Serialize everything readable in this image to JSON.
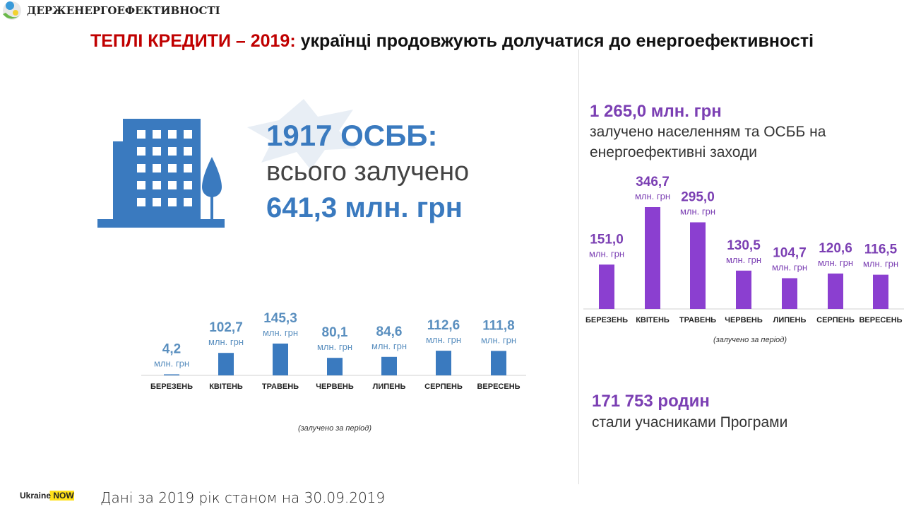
{
  "header": {
    "org": "ДЕРЖЕНЕРГОЕФЕКТИВНОСТІ",
    "title_red": "ТЕПЛІ КРЕДИТИ – 2019:",
    "title_black": "українці продовжують долучатися до енергоефективності"
  },
  "osbb": {
    "count": "1917 ОСББ:",
    "line2": "всього залучено",
    "amount": "641,3 млн. грн"
  },
  "right": {
    "total": "1 265,0 млн. грн",
    "total_desc1": "залучено населенням та ОСББ на",
    "total_desc2": "енергоефективні заходи",
    "families": "171 753 родин",
    "families_desc": "стали учасниками Програми"
  },
  "footer": {
    "logo": "Ukraine NOW",
    "date_note": "Дані за 2019 рік станом на 30.09.2019"
  },
  "colors": {
    "blue": "#3a7abf",
    "purple": "#8b3fd0",
    "red": "#c00000"
  },
  "chart_data": [
    {
      "type": "bar",
      "title": "ОСББ",
      "categories": [
        "БЕРЕЗЕНЬ",
        "КВІТЕНЬ",
        "ТРАВЕНЬ",
        "ЧЕРВЕНЬ",
        "ЛИПЕНЬ",
        "СЕРПЕНЬ",
        "ВЕРЕСЕНЬ"
      ],
      "values": [
        4.2,
        102.7,
        145.3,
        80.1,
        84.6,
        112.6,
        111.8
      ],
      "labels": [
        "4,2",
        "102,7",
        "145,3",
        "80,1",
        "84,6",
        "112,6",
        "111,8"
      ],
      "unit": "млн. грн",
      "xlabel": "(залучено за період)"
    },
    {
      "type": "bar",
      "title": "Населення та ОСББ",
      "categories": [
        "БЕРЕЗЕНЬ",
        "КВІТЕНЬ",
        "ТРАВЕНЬ",
        "ЧЕРВЕНЬ",
        "ЛИПЕНЬ",
        "СЕРПЕНЬ",
        "ВЕРЕСЕНЬ"
      ],
      "values": [
        151.0,
        346.7,
        295.0,
        130.5,
        104.7,
        120.6,
        116.5
      ],
      "labels": [
        "151,0",
        "346,7",
        "295,0",
        "130,5",
        "104,7",
        "120,6",
        "116,5"
      ],
      "unit": "млн. грн",
      "xlabel": "(залучено за період)"
    }
  ]
}
